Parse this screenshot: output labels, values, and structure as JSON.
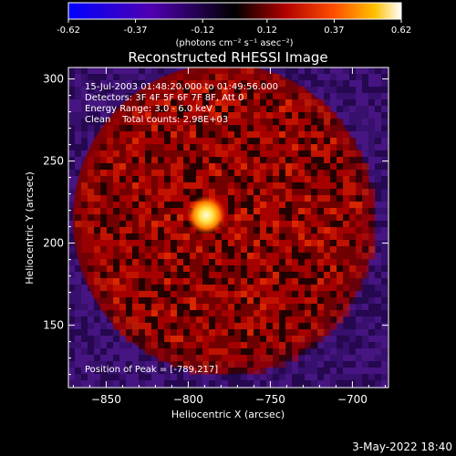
{
  "chart_data": {
    "type": "heatmap",
    "title": "Reconstructed RHESSI Image",
    "xlabel": "Heliocentric X (arcsec)",
    "ylabel": "Heliocentric Y (arcsec)",
    "xlim": [
      -873,
      -678
    ],
    "ylim": [
      112,
      307
    ],
    "xticks": [
      -850,
      -800,
      -750,
      -700
    ],
    "yticks": [
      150,
      200,
      250,
      300
    ],
    "colorbar": {
      "min": -0.62,
      "max": 0.62,
      "ticks": [
        "-0.62",
        "-0.37",
        "-0.12",
        "0.12",
        "0.37",
        "0.62"
      ],
      "units_label": "(photons cm⁻² s⁻¹ asec⁻²)",
      "colors": [
        "#0000ff",
        "#5000b0",
        "#000000",
        "#b00000",
        "#ff5000",
        "#ffc000",
        "#ffffff"
      ]
    },
    "peak": {
      "x": -789,
      "y": 217,
      "value": 0.62
    },
    "annotations": [
      "15-Jul-2003 01:48:20.000 to 01:49:56.000",
      "Detectors: 3F 4F 5F 6F 7F 8F, Att 0",
      "Energy Range: 3.0 - 6.0 keV",
      "Clean    Total counts: 2.98E+03",
      "Position of Peak = [-789,217]"
    ],
    "grid": false,
    "legend": "colorbar-top"
  },
  "footer": {
    "timestamp": "3-May-2022 18:40"
  }
}
